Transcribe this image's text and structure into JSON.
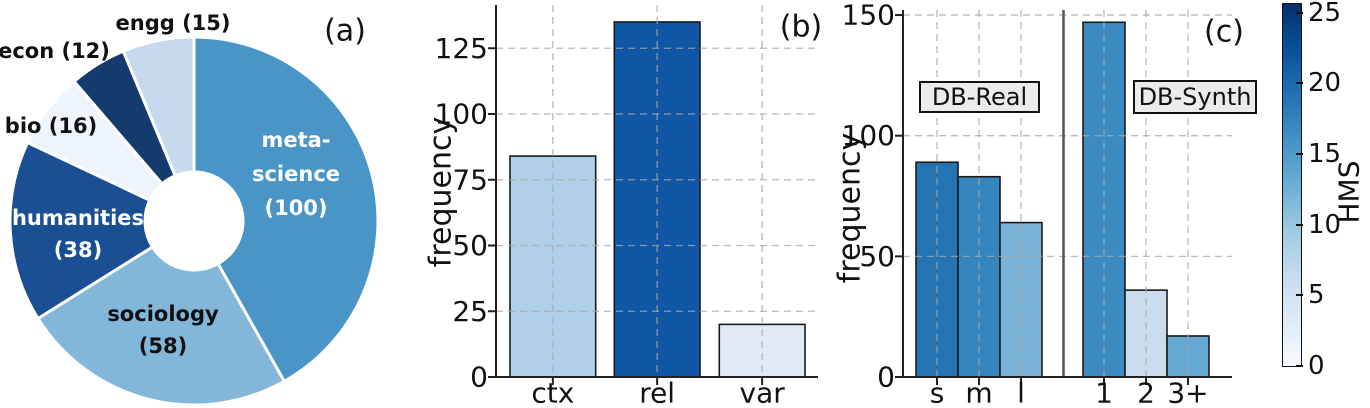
{
  "figure": {
    "background": "#ffffff"
  },
  "chart_data": [
    {
      "id": "a",
      "type": "pie",
      "panel_label": "(a)",
      "donut": true,
      "labels": [
        "meta-science",
        "sociology",
        "humanities",
        "bio",
        "econ",
        "engg"
      ],
      "values": [
        100,
        58,
        38,
        16,
        12,
        15
      ],
      "colors": [
        "#4a95c8",
        "#82b7da",
        "#1a4f94",
        "#eef4fb",
        "#153a6e",
        "#c6d9ed"
      ],
      "slice_label_lines": [
        [
          "meta-",
          "science",
          "(100)"
        ],
        [
          "sociology",
          "(58)"
        ],
        [
          "humanities",
          "(38)"
        ],
        [
          "bio (16)"
        ],
        [
          "econ (12)"
        ],
        [
          "engg (15)"
        ]
      ],
      "slice_label_colors": [
        "#ffffff",
        "#111111",
        "#ffffff",
        "#111111",
        "#111111",
        "#111111"
      ]
    },
    {
      "id": "b",
      "type": "bar",
      "panel_label": "(b)",
      "ylabel": "frequency",
      "categories": [
        "ctx",
        "rel",
        "var"
      ],
      "values": [
        84,
        135,
        20
      ],
      "colors": [
        "#aed0e8",
        "#0f57a4",
        "#dfeaf6"
      ],
      "yticks": [
        0,
        25,
        50,
        75,
        100,
        125
      ],
      "ylim": [
        0,
        142
      ],
      "grid": "dashed"
    },
    {
      "id": "c",
      "type": "bar",
      "panel_label": "(c)",
      "ylabel": "frequency",
      "yticks": [
        0,
        50,
        100,
        150
      ],
      "ylim": [
        0,
        152
      ],
      "grid": "dashed",
      "groups": [
        {
          "label": "DB-Real",
          "categories": [
            "s",
            "m",
            "l"
          ],
          "values": [
            89,
            83,
            64
          ],
          "colors": [
            "#2473b3",
            "#3585bf",
            "#7bb3d8"
          ]
        },
        {
          "label": "DB-Synth",
          "categories": [
            "1",
            "2",
            "3+"
          ],
          "values": [
            147,
            36,
            17
          ],
          "colors": [
            "#3c8cc3",
            "#caddef",
            "#65a8d2"
          ]
        }
      ]
    }
  ],
  "colorbar": {
    "label": "HMS",
    "ticks": [
      0,
      5,
      10,
      15,
      20,
      25
    ],
    "min": 0,
    "max": 25.6,
    "colormap": "Blues",
    "gradient_stops": [
      "#f7fbff",
      "#deebf7",
      "#c6dbef",
      "#9ecae1",
      "#6baed6",
      "#4292c6",
      "#2171b5",
      "#08519c",
      "#08306b"
    ]
  }
}
